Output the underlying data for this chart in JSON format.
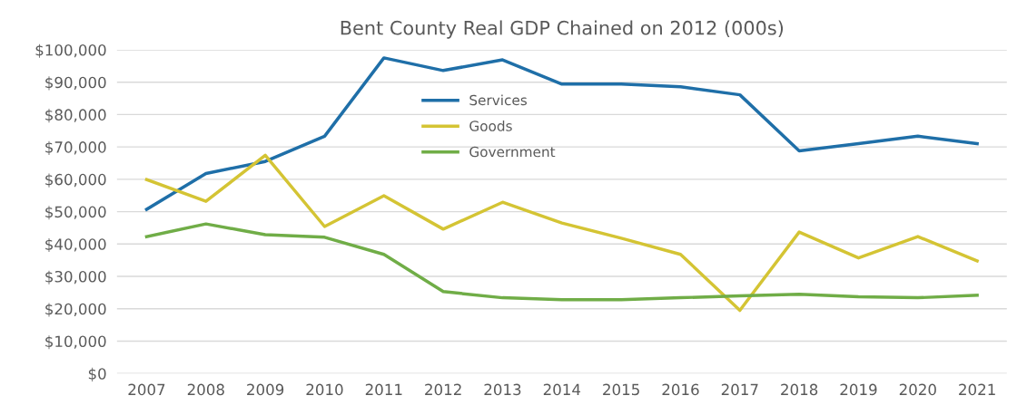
{
  "chart_data": {
    "type": "line",
    "title": "Bent County Real GDP Chained on 2012 (000s)",
    "categories": [
      "2007",
      "2008",
      "2009",
      "2010",
      "2011",
      "2012",
      "2013",
      "2014",
      "2015",
      "2016",
      "2017",
      "2018",
      "2019",
      "2020",
      "2021"
    ],
    "series": [
      {
        "name": "Services",
        "color": "#1f6fa8",
        "values": [
          50700,
          61800,
          65500,
          73300,
          97500,
          93600,
          96900,
          89400,
          89400,
          88600,
          86100,
          68800,
          71000,
          73300,
          71000
        ]
      },
      {
        "name": "Goods",
        "color": "#d4c434",
        "values": [
          59900,
          53200,
          67400,
          45400,
          54900,
          44600,
          52900,
          46500,
          41800,
          36800,
          19500,
          43700,
          35700,
          42300,
          34800
        ]
      },
      {
        "name": "Government",
        "color": "#70ad47",
        "values": [
          42300,
          46200,
          42900,
          42100,
          36800,
          25300,
          23400,
          22800,
          22800,
          23400,
          24000,
          24500,
          23700,
          23400,
          24200
        ]
      }
    ],
    "ylim": [
      0,
      100000
    ],
    "yticks": [
      {
        "value": 0,
        "label": "$0"
      },
      {
        "value": 10000,
        "label": "$10,000"
      },
      {
        "value": 20000,
        "label": "$20,000"
      },
      {
        "value": 30000,
        "label": "$30,000"
      },
      {
        "value": 40000,
        "label": "$40,000"
      },
      {
        "value": 50000,
        "label": "$50,000"
      },
      {
        "value": 60000,
        "label": "$60,000"
      },
      {
        "value": 70000,
        "label": "$70,000"
      },
      {
        "value": 80000,
        "label": "$80,000"
      },
      {
        "value": 90000,
        "label": "$90,000"
      },
      {
        "value": 100000,
        "label": "$100,000"
      }
    ],
    "grid": "y",
    "legend": "top",
    "marker": "none",
    "line_style": "solid"
  }
}
